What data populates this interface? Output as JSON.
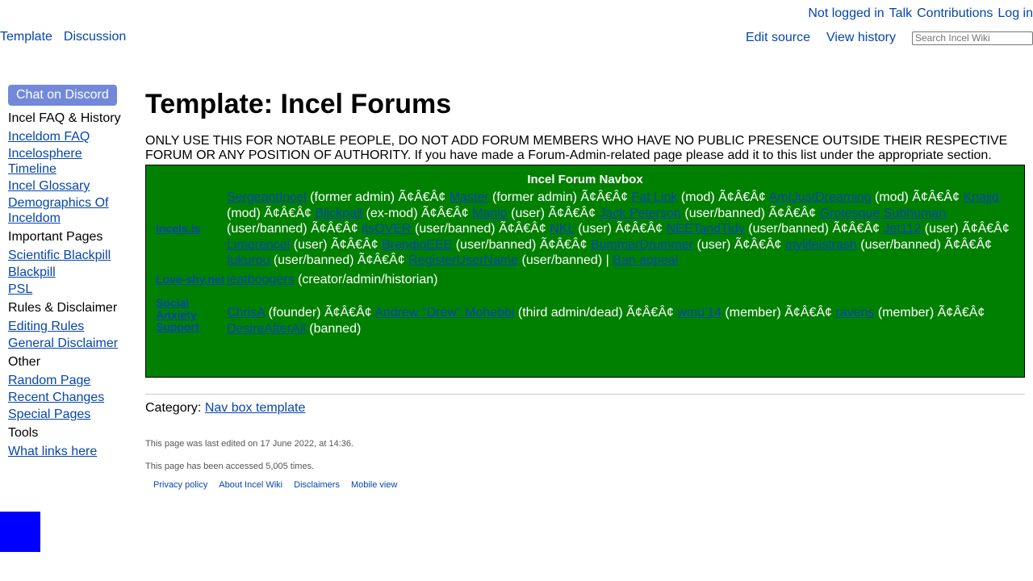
{
  "personal": {
    "not_logged_in": "Not logged in",
    "talk": "Talk",
    "contributions": "Contributions",
    "log_in": "Log in"
  },
  "tabs": {
    "template": "Template",
    "discussion": "Discussion",
    "edit_source": "Edit source",
    "view_history": "View history"
  },
  "search": {
    "placeholder": "Search Incel Wiki"
  },
  "sidebar": {
    "discord": "Chat on Discord",
    "sections": [
      {
        "head": "Incel FAQ & History",
        "links": [
          "Inceldom FAQ",
          "Incelosphere Timeline",
          "Incel Glossary",
          "Demographics Of Inceldom"
        ]
      },
      {
        "head": "Important Pages",
        "links": [
          "Scientific Blackpill",
          "Blackpill",
          "PSL"
        ]
      },
      {
        "head": "Rules & Disclaimer",
        "links": [
          "Editing Rules",
          "General Disclaimer"
        ]
      },
      {
        "head": "Other",
        "links": [
          "Random Page",
          "Recent Changes",
          "Special Pages"
        ]
      },
      {
        "head": "Tools",
        "links": [
          "What links here"
        ]
      }
    ]
  },
  "page": {
    "title": "Template: Incel Forums",
    "notice": "ONLY USE THIS FOR NOTABLE PEOPLE, DO NOT ADD FORUM MEMBERS WHO HAVE NO PUBLIC PRESENCE OUTSIDE THEIR RESPECTIVE FORUM OR ANY POSITION OF AUTHORITY. If you have made a Forum-Admin-related page please add it to this list under the appropriate section."
  },
  "navbox": {
    "title": "Incel Forum Navbox",
    "sep": "Ã¢Â€Â¢",
    "rows": [
      {
        "group": "Incels.is",
        "items": [
          {
            "name": "SergeantIncel",
            "role": "(former admin)"
          },
          {
            "name": "Master",
            "role": "(former admin)"
          },
          {
            "name": "Fat Link",
            "role": "(mod)"
          },
          {
            "name": "AmIJustDreaming",
            "role": "(mod)"
          },
          {
            "name": "Knajjd",
            "role": "(mod)"
          },
          {
            "name": "Blickpall",
            "role": "(ex-mod)"
          },
          {
            "name": "Manlo",
            "role": "(user)"
          },
          {
            "name": "Jack Peterson",
            "role": "(user/banned)"
          },
          {
            "name": "Grotesque Subhuman",
            "role": "(user/banned)"
          },
          {
            "name": "itsOVER",
            "role": "(user/banned)"
          },
          {
            "name": "NKL",
            "role": "(user)"
          },
          {
            "name": "NEETandTidy",
            "role": "(user/banned)"
          },
          {
            "name": "Jet112",
            "role": "(user)"
          },
          {
            "name": "Limerencel",
            "role": "(user)"
          },
          {
            "name": "BrendioEEE",
            "role": "(user/banned)"
          },
          {
            "name": "BummerDrummer",
            "role": "(user)"
          },
          {
            "name": "mylifeistrash",
            "role": "(user/banned)"
          },
          {
            "name": "fukurou",
            "role": "(user/banned)"
          },
          {
            "name": "RegisterUserName",
            "role": "(user/banned) |"
          }
        ],
        "tail_link": "Ban appeal"
      },
      {
        "group": "Love-shy.net",
        "items": [
          {
            "name": "ieatboogers",
            "role": "(creator/admin/historian)"
          }
        ]
      },
      {
        "group": "Social Anxiety Support",
        "items": [
          {
            "name": "ChrisA",
            "role": "(founder)"
          },
          {
            "name": "Andrew \"Drew\" Mohebbi",
            "role": "(third admin/dead)"
          },
          {
            "name": "wmu'14",
            "role": "(member)"
          },
          {
            "name": "ravens",
            "role": "(member)"
          },
          {
            "name": "DesireAfterAll",
            "role": "(banned)"
          }
        ]
      }
    ]
  },
  "category": {
    "label": "Category:",
    "link": "Nav box template"
  },
  "footer": {
    "last_edited": "This page was last edited on 17 June 2022, at 14:36.",
    "accessed": "This page has been accessed 5,005 times.",
    "links": [
      "Privacy policy",
      "About Incel Wiki",
      "Disclaimers",
      "Mobile view"
    ]
  },
  "colors": {
    "link": "#0645ad",
    "navbox_bg": "#008000",
    "discord": "#7289da",
    "corner_box": "#0000ff"
  }
}
